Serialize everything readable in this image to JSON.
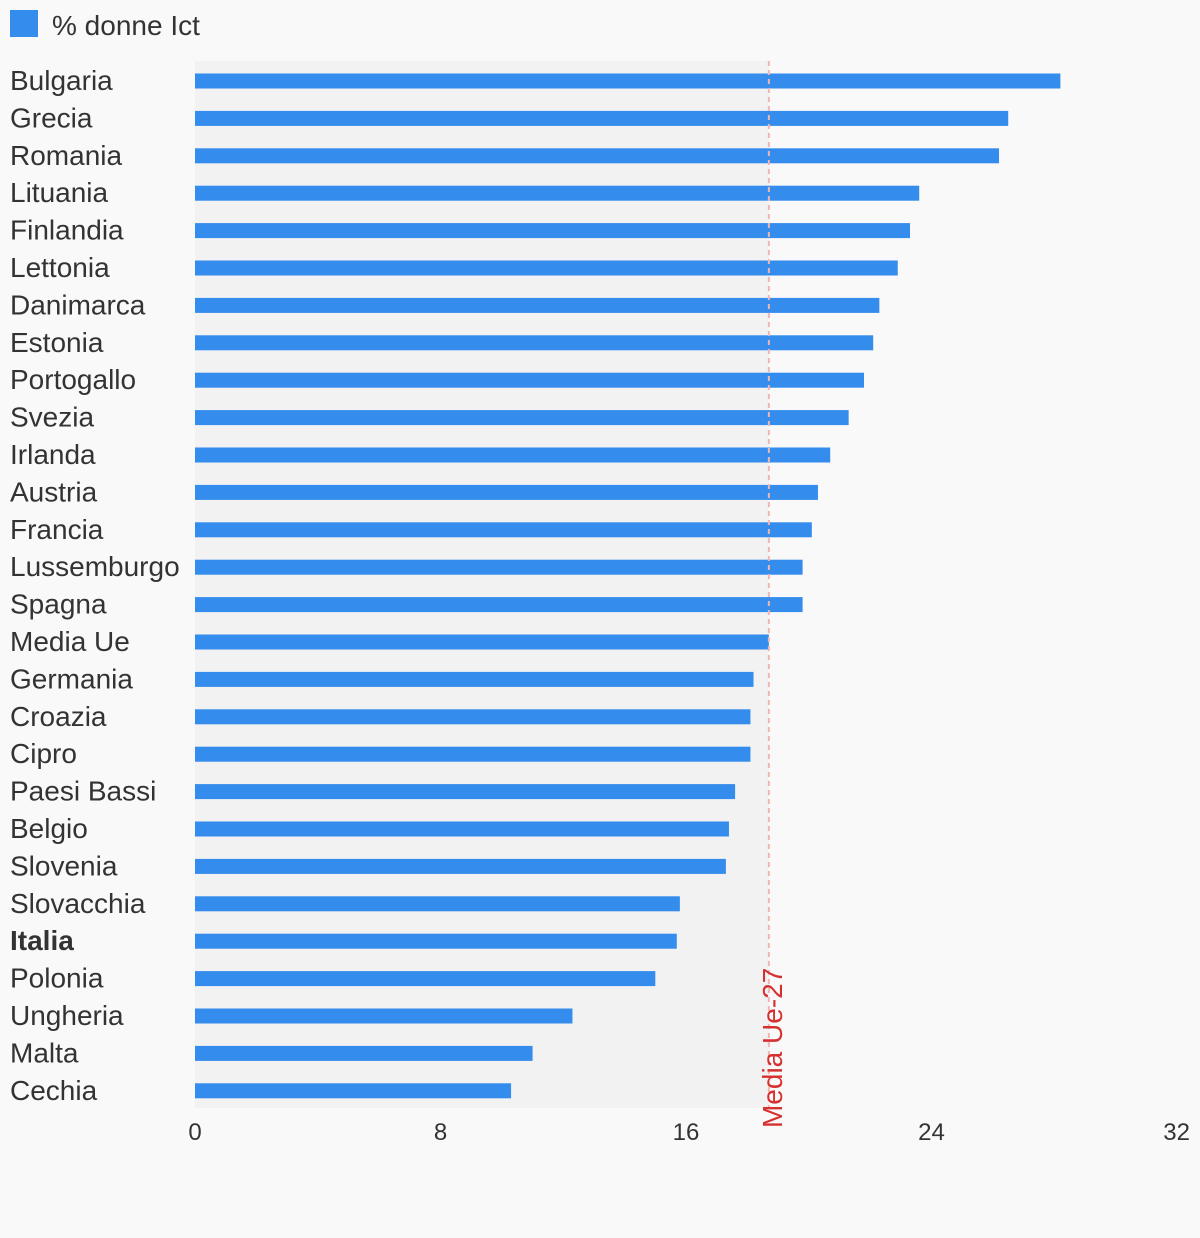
{
  "legend": {
    "label": "% donne Ict",
    "color": "#348ced"
  },
  "reference_line": {
    "label": "Media Ue-27",
    "value": 18.7,
    "color": "#d63131"
  },
  "highlight_category": "Italia",
  "chart_data": {
    "type": "bar",
    "orientation": "horizontal",
    "title": "",
    "xlabel": "",
    "ylabel": "",
    "xlim": [
      0,
      32
    ],
    "xticks": [
      0,
      8,
      16,
      24,
      32
    ],
    "grid": false,
    "legend_position": "top-left",
    "categories": [
      "Bulgaria",
      "Grecia",
      "Romania",
      "Lituania",
      "Finlandia",
      "Lettonia",
      "Danimarca",
      "Estonia",
      "Portogallo",
      "Svezia",
      "Irlanda",
      "Austria",
      "Francia",
      "Lussemburgo",
      "Spagna",
      "Media Ue",
      "Germania",
      "Croazia",
      "Cipro",
      "Paesi Bassi",
      "Belgio",
      "Slovenia",
      "Slovacchia",
      "Italia",
      "Polonia",
      "Ungheria",
      "Malta",
      "Cechia"
    ],
    "series": [
      {
        "name": "% donne Ict",
        "color": "#348ced",
        "values": [
          28.2,
          26.5,
          26.2,
          23.6,
          23.3,
          22.9,
          22.3,
          22.1,
          21.8,
          21.3,
          20.7,
          20.3,
          20.1,
          19.8,
          19.8,
          18.7,
          18.2,
          18.1,
          18.1,
          17.6,
          17.4,
          17.3,
          15.8,
          15.7,
          15.0,
          12.3,
          11.0,
          10.3
        ]
      }
    ]
  }
}
